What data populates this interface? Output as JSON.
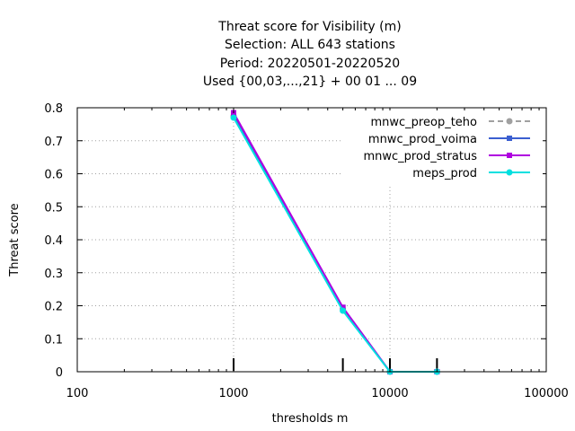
{
  "title_lines": [
    "Threat score  for Visibility (m)",
    "Selection: ALL    643 stations",
    "Period: 20220501-20220520",
    "Used {00,03,...,21} + 00 01 ... 09"
  ],
  "chart_data": {
    "type": "line",
    "xlabel": "thresholds m",
    "ylabel": "Threat score",
    "xscale": "log",
    "xlim": [
      100,
      100000
    ],
    "ylim": [
      0,
      0.8
    ],
    "x_ticks": [
      100,
      1000,
      10000,
      100000
    ],
    "x_tick_labels": [
      "100",
      "1000",
      "10000",
      "100000"
    ],
    "y_ticks": [
      0,
      0.1,
      0.2,
      0.3,
      0.4,
      0.5,
      0.6,
      0.7,
      0.8
    ],
    "y_tick_labels": [
      "0",
      "0.1",
      "0.2",
      "0.3",
      "0.4",
      "0.5",
      "0.6",
      "0.7",
      "0.8"
    ],
    "grid": true,
    "legend_position": "top-right",
    "threshold_markers": [
      1000,
      5000,
      10000,
      20000
    ],
    "series": [
      {
        "name": "mnwc_preop_teho",
        "color": "#a0a0a0",
        "dash": "6,4",
        "marker": "circle",
        "x": [
          1000,
          5000,
          10000,
          20000
        ],
        "y": [
          0.775,
          0.19,
          0.0,
          0.0
        ]
      },
      {
        "name": "mnwc_prod_voima",
        "color": "#3b5fd0",
        "dash": "",
        "marker": "square",
        "x": [
          1000,
          5000,
          10000,
          20000
        ],
        "y": [
          0.78,
          0.195,
          0.0,
          0.0
        ]
      },
      {
        "name": "mnwc_prod_stratus",
        "color": "#b000e0",
        "dash": "",
        "marker": "square",
        "x": [
          1000,
          5000,
          10000,
          20000
        ],
        "y": [
          0.785,
          0.195,
          0.0,
          0.0
        ]
      },
      {
        "name": "meps_prod",
        "color": "#00e0e0",
        "dash": "",
        "marker": "circle",
        "x": [
          1000,
          5000,
          10000,
          20000
        ],
        "y": [
          0.77,
          0.185,
          0.0,
          0.0
        ]
      }
    ]
  }
}
